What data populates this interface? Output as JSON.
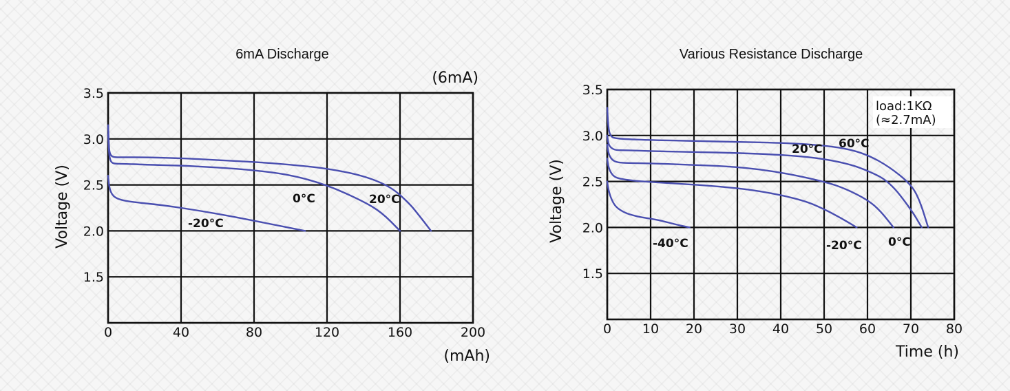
{
  "chart_data": [
    {
      "type": "line",
      "title": "6mA Discharge",
      "note": "(6mA)",
      "xlabel": "",
      "xunit": "(mAh)",
      "ylabel": "Voltage (V)",
      "xlim": [
        0,
        200
      ],
      "ylim": [
        1.0,
        3.5
      ],
      "xticks": [
        0,
        40,
        80,
        120,
        160,
        200
      ],
      "yticks": [
        1.5,
        2.0,
        2.5,
        3.0,
        3.5
      ],
      "grid": true,
      "series": [
        {
          "name": "-20°C",
          "x": [
            0,
            0.5,
            1,
            2,
            4,
            8,
            15,
            30,
            50,
            70,
            90,
            108
          ],
          "y": [
            2.6,
            2.5,
            2.45,
            2.4,
            2.36,
            2.33,
            2.31,
            2.28,
            2.22,
            2.15,
            2.07,
            2.0
          ]
        },
        {
          "name": "0°C",
          "x": [
            0,
            0.5,
            1,
            2,
            4,
            8,
            20,
            40,
            60,
            80,
            100,
            120,
            140,
            150,
            160
          ],
          "y": [
            3.05,
            2.85,
            2.78,
            2.74,
            2.73,
            2.73,
            2.72,
            2.71,
            2.69,
            2.66,
            2.61,
            2.5,
            2.32,
            2.2,
            2.0
          ]
        },
        {
          "name": "20°C",
          "x": [
            0,
            0.5,
            1,
            2,
            4,
            8,
            20,
            40,
            60,
            80,
            100,
            120,
            140,
            155,
            165,
            170,
            177
          ],
          "y": [
            3.15,
            2.9,
            2.84,
            2.81,
            2.8,
            2.8,
            2.8,
            2.79,
            2.77,
            2.75,
            2.72,
            2.68,
            2.6,
            2.48,
            2.3,
            2.18,
            2.0
          ]
        }
      ],
      "annotations": [
        "-20°C",
        "0°C",
        "20°C"
      ]
    },
    {
      "type": "line",
      "title": "Various Resistance Discharge",
      "note_line1": "load:1KΩ",
      "note_line2": "(≈2.7mA)",
      "xlabel": "Time (h)",
      "ylabel": "Voltage (V)",
      "xlim": [
        0,
        80
      ],
      "ylim": [
        1.0,
        3.5
      ],
      "xticks": [
        0,
        10,
        20,
        30,
        40,
        50,
        60,
        70,
        80
      ],
      "yticks": [
        1.5,
        2.0,
        2.5,
        3.0,
        3.5
      ],
      "grid": true,
      "series": [
        {
          "name": "-40°C",
          "x": [
            0,
            0.3,
            1,
            2,
            4,
            6,
            8,
            12,
            16,
            19
          ],
          "y": [
            2.5,
            2.4,
            2.3,
            2.22,
            2.16,
            2.13,
            2.11,
            2.08,
            2.03,
            2.0
          ]
        },
        {
          "name": "-20°C",
          "x": [
            0,
            0.3,
            1,
            2,
            4,
            8,
            15,
            25,
            35,
            45,
            50,
            54,
            57.5
          ],
          "y": [
            2.75,
            2.65,
            2.58,
            2.54,
            2.52,
            2.5,
            2.48,
            2.45,
            2.4,
            2.3,
            2.2,
            2.1,
            2.0
          ]
        },
        {
          "name": "0°C",
          "x": [
            0,
            0.3,
            1,
            2,
            4,
            8,
            20,
            30,
            40,
            50,
            55,
            60,
            63,
            66
          ],
          "y": [
            2.9,
            2.8,
            2.74,
            2.71,
            2.7,
            2.7,
            2.68,
            2.66,
            2.6,
            2.5,
            2.42,
            2.3,
            2.18,
            2.0
          ]
        },
        {
          "name": "20°C",
          "x": [
            0,
            0.3,
            1,
            2,
            4,
            10,
            20,
            30,
            40,
            48,
            55,
            60,
            65,
            70,
            72.5
          ],
          "y": [
            3.0,
            2.9,
            2.86,
            2.84,
            2.84,
            2.83,
            2.82,
            2.81,
            2.79,
            2.76,
            2.7,
            2.62,
            2.5,
            2.2,
            2.0
          ]
        },
        {
          "name": "60°C",
          "x": [
            0,
            0.3,
            1,
            2,
            4,
            10,
            20,
            30,
            40,
            48,
            55,
            60,
            65,
            70,
            72,
            74
          ],
          "y": [
            3.3,
            3.05,
            2.98,
            2.97,
            2.96,
            2.95,
            2.94,
            2.93,
            2.92,
            2.9,
            2.86,
            2.79,
            2.66,
            2.47,
            2.3,
            2.0
          ]
        }
      ],
      "annotations": [
        "-40°C",
        "-20°C",
        "0°C",
        "20°C",
        "60°C"
      ]
    }
  ]
}
